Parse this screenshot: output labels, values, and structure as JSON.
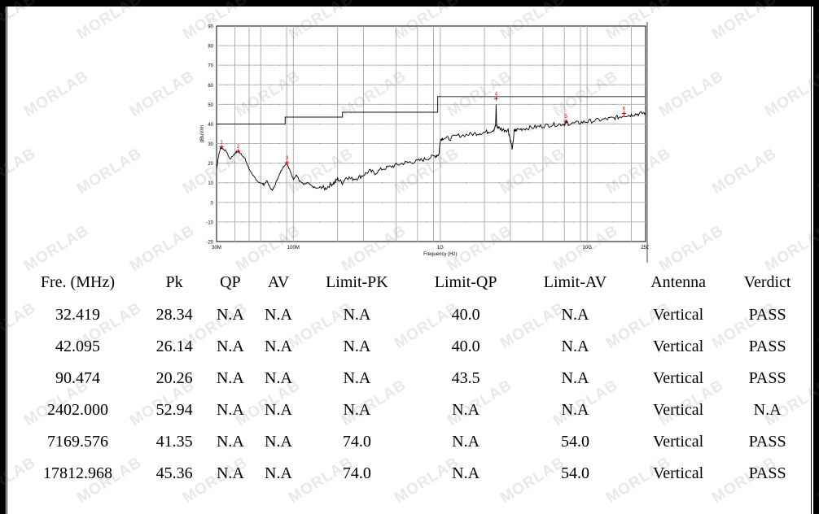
{
  "chart_data": {
    "type": "line",
    "xscale": "log",
    "xlim_hz": [
      30000000,
      25000000000
    ],
    "ylim": [
      -20,
      90
    ],
    "ylabel": "dBuV/m",
    "xlabel": "Frequency (Hz)",
    "ytick_labels": [
      "90",
      "80",
      "70",
      "60",
      "50",
      "40",
      "30",
      "20",
      "10",
      "0",
      "-10",
      "-20"
    ],
    "xtick_labels": [
      "30M",
      "100M",
      "1G",
      "10G",
      "25G"
    ],
    "limit_line_1": [
      [
        30,
        40.0
      ],
      [
        88,
        40.0
      ],
      [
        88,
        43.5
      ],
      [
        216,
        43.5
      ],
      [
        216,
        46.0
      ],
      [
        960,
        46.0
      ],
      [
        960,
        54.0
      ],
      [
        25000,
        54.0
      ]
    ],
    "limit_line_2": [
      [
        1000,
        54.0
      ],
      [
        25000,
        54.0
      ]
    ],
    "grid": true,
    "markers": [
      {
        "label": "1",
        "x_mhz": 32.419,
        "y": 28.34
      },
      {
        "label": "2",
        "x_mhz": 42.095,
        "y": 26.14
      },
      {
        "label": "3",
        "x_mhz": 90.474,
        "y": 20.26
      },
      {
        "label": "4",
        "x_mhz": 2402.0,
        "y": 52.94
      },
      {
        "label": "5",
        "x_mhz": 7169.576,
        "y": 41.35
      },
      {
        "label": "6",
        "x_mhz": 17812.968,
        "y": 45.36
      }
    ],
    "trace": [
      [
        30,
        17
      ],
      [
        31,
        24
      ],
      [
        32,
        28
      ],
      [
        33,
        27.5
      ],
      [
        35,
        26
      ],
      [
        37,
        22
      ],
      [
        39,
        24
      ],
      [
        40.5,
        25.5
      ],
      [
        42,
        26
      ],
      [
        44,
        25
      ],
      [
        47,
        22
      ],
      [
        50,
        17
      ],
      [
        53,
        14
      ],
      [
        56,
        11
      ],
      [
        60,
        10
      ],
      [
        63,
        9
      ],
      [
        66,
        11
      ],
      [
        69,
        8
      ],
      [
        72,
        6
      ],
      [
        75,
        9
      ],
      [
        78,
        12
      ],
      [
        81,
        15
      ],
      [
        85,
        18
      ],
      [
        90,
        20
      ],
      [
        95,
        16
      ],
      [
        100,
        12
      ],
      [
        105,
        14
      ],
      [
        110,
        11
      ],
      [
        118,
        9
      ],
      [
        125,
        10
      ],
      [
        135,
        8
      ],
      [
        145,
        7
      ],
      [
        155,
        8
      ],
      [
        165,
        7
      ],
      [
        178,
        9
      ],
      [
        190,
        10
      ],
      [
        200,
        12
      ],
      [
        215,
        10
      ],
      [
        230,
        13
      ],
      [
        250,
        12
      ],
      [
        275,
        12.5
      ],
      [
        300,
        14
      ],
      [
        330,
        16
      ],
      [
        360,
        15
      ],
      [
        400,
        17
      ],
      [
        450,
        18
      ],
      [
        500,
        19
      ],
      [
        560,
        20
      ],
      [
        620,
        20.5
      ],
      [
        700,
        21
      ],
      [
        780,
        22
      ],
      [
        860,
        23
      ],
      [
        940,
        24
      ],
      [
        980,
        24.5
      ],
      [
        1000,
        32
      ],
      [
        1050,
        33
      ],
      [
        1150,
        32.5
      ],
      [
        1300,
        34
      ],
      [
        1500,
        34.5
      ],
      [
        1700,
        35
      ],
      [
        1900,
        35.5
      ],
      [
        2100,
        36
      ],
      [
        2300,
        37
      ],
      [
        2380,
        39
      ],
      [
        2402,
        50
      ],
      [
        2420,
        39
      ],
      [
        2500,
        38
      ],
      [
        2700,
        37
      ],
      [
        2900,
        37
      ],
      [
        3000,
        32
      ],
      [
        3100,
        27
      ],
      [
        3180,
        36
      ],
      [
        3300,
        37
      ],
      [
        3600,
        37.5
      ],
      [
        4000,
        38
      ],
      [
        4500,
        38.5
      ],
      [
        5000,
        39
      ],
      [
        5600,
        39.5
      ],
      [
        6300,
        39.8
      ],
      [
        7000,
        40
      ],
      [
        7169,
        41
      ],
      [
        7500,
        40
      ],
      [
        8500,
        40.5
      ],
      [
        9500,
        41
      ],
      [
        10500,
        41.5
      ],
      [
        12000,
        42
      ],
      [
        13500,
        42.5
      ],
      [
        15000,
        43
      ],
      [
        16500,
        43.5
      ],
      [
        17800,
        44.5
      ],
      [
        19500,
        44.5
      ],
      [
        21000,
        45
      ],
      [
        23000,
        45.3
      ],
      [
        25000,
        45.8
      ]
    ]
  },
  "table": {
    "headers": [
      "Fre. (MHz)",
      "Pk",
      "QP",
      "AV",
      "Limit-PK",
      "Limit-QP",
      "Limit-AV",
      "Antenna",
      "Verdict"
    ],
    "rows": [
      [
        "32.419",
        "28.34",
        "N.A",
        "N.A",
        "N.A",
        "40.0",
        "N.A",
        "Vertical",
        "PASS"
      ],
      [
        "42.095",
        "26.14",
        "N.A",
        "N.A",
        "N.A",
        "40.0",
        "N.A",
        "Vertical",
        "PASS"
      ],
      [
        "90.474",
        "20.26",
        "N.A",
        "N.A",
        "N.A",
        "43.5",
        "N.A",
        "Vertical",
        "PASS"
      ],
      [
        "2402.000",
        "52.94",
        "N.A",
        "N.A",
        "N.A",
        "N.A",
        "N.A",
        "Vertical",
        "N.A"
      ],
      [
        "7169.576",
        "41.35",
        "N.A",
        "N.A",
        "74.0",
        "N.A",
        "54.0",
        "Vertical",
        "PASS"
      ],
      [
        "17812.968",
        "45.36",
        "N.A",
        "N.A",
        "74.0",
        "N.A",
        "54.0",
        "Vertical",
        "PASS"
      ]
    ]
  },
  "watermark": "MORLAB"
}
